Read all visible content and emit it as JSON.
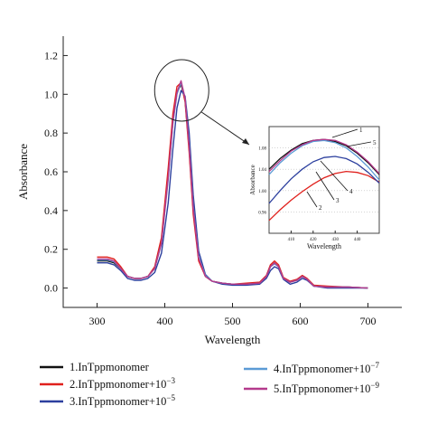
{
  "chart_data": [
    {
      "type": "line",
      "title": "",
      "xlabel": "Wavelength",
      "ylabel": "Absorbance",
      "xlim": [
        250,
        750
      ],
      "ylim": [
        -0.1,
        1.3
      ],
      "xticks": [
        "300",
        "400",
        "500",
        "600",
        "700"
      ],
      "yticks": [
        "0.0",
        "0.2",
        "0.4",
        "0.6",
        "0.8",
        "1.0",
        "1.2"
      ],
      "legend_placement": "bottom",
      "series": [
        {
          "name": "1.InTppmonomer",
          "color": "#111111",
          "x": [
            300,
            315,
            325,
            335,
            345,
            355,
            365,
            375,
            385,
            395,
            405,
            412,
            418,
            424,
            430,
            436,
            442,
            450,
            460,
            470,
            485,
            500,
            520,
            540,
            550,
            556,
            562,
            568,
            575,
            585,
            595,
            603,
            610,
            620,
            640,
            670,
            700
          ],
          "y": [
            0.14,
            0.14,
            0.13,
            0.1,
            0.06,
            0.05,
            0.05,
            0.06,
            0.1,
            0.24,
            0.58,
            0.86,
            1.01,
            1.05,
            0.97,
            0.72,
            0.4,
            0.15,
            0.06,
            0.035,
            0.025,
            0.02,
            0.02,
            0.025,
            0.06,
            0.11,
            0.13,
            0.11,
            0.05,
            0.03,
            0.04,
            0.06,
            0.045,
            0.01,
            0.005,
            0.005,
            0.0
          ]
        },
        {
          "name": "2.InTppmonomer+10",
          "exponent": "−3",
          "color": "#e0201c",
          "x": [
            300,
            315,
            325,
            335,
            345,
            355,
            365,
            375,
            385,
            395,
            405,
            412,
            418,
            424,
            430,
            436,
            442,
            450,
            460,
            470,
            485,
            500,
            520,
            540,
            550,
            556,
            562,
            568,
            575,
            585,
            595,
            603,
            610,
            620,
            640,
            670,
            700
          ],
          "y": [
            0.16,
            0.16,
            0.15,
            0.11,
            0.06,
            0.05,
            0.05,
            0.06,
            0.11,
            0.26,
            0.62,
            0.9,
            1.04,
            1.06,
            0.96,
            0.7,
            0.38,
            0.14,
            0.06,
            0.035,
            0.025,
            0.02,
            0.025,
            0.03,
            0.065,
            0.12,
            0.14,
            0.12,
            0.055,
            0.035,
            0.045,
            0.065,
            0.05,
            0.015,
            0.01,
            0.005,
            0.0
          ]
        },
        {
          "name": "3.InTppmonomer+10",
          "exponent": "−5",
          "color": "#2c3f9e",
          "x": [
            300,
            315,
            325,
            335,
            345,
            355,
            365,
            375,
            385,
            395,
            405,
            412,
            418,
            424,
            430,
            436,
            442,
            450,
            460,
            470,
            485,
            500,
            520,
            540,
            550,
            556,
            562,
            568,
            575,
            585,
            595,
            603,
            610,
            620,
            640,
            670,
            700
          ],
          "y": [
            0.13,
            0.13,
            0.12,
            0.09,
            0.05,
            0.04,
            0.04,
            0.05,
            0.08,
            0.18,
            0.44,
            0.72,
            0.93,
            1.02,
            0.99,
            0.8,
            0.48,
            0.19,
            0.07,
            0.035,
            0.02,
            0.015,
            0.015,
            0.02,
            0.05,
            0.09,
            0.11,
            0.1,
            0.045,
            0.02,
            0.03,
            0.05,
            0.04,
            0.01,
            0.0,
            0.0,
            0.0
          ]
        },
        {
          "name": "4.InTppmonomer+10",
          "exponent": "−7",
          "color": "#5b9bd5",
          "x": [
            300,
            315,
            325,
            335,
            345,
            355,
            365,
            375,
            385,
            395,
            405,
            412,
            418,
            424,
            430,
            436,
            442,
            450,
            460,
            470,
            485,
            500,
            520,
            540,
            550,
            556,
            562,
            568,
            575,
            585,
            595,
            603,
            610,
            620,
            640,
            670,
            700
          ],
          "y": [
            0.145,
            0.145,
            0.135,
            0.1,
            0.06,
            0.05,
            0.05,
            0.06,
            0.1,
            0.23,
            0.56,
            0.85,
            1.0,
            1.06,
            0.98,
            0.74,
            0.42,
            0.16,
            0.065,
            0.035,
            0.025,
            0.02,
            0.02,
            0.025,
            0.06,
            0.11,
            0.125,
            0.11,
            0.05,
            0.03,
            0.04,
            0.06,
            0.045,
            0.01,
            0.005,
            0.005,
            0.0
          ]
        },
        {
          "name": "5.InTppmonomer+10",
          "exponent": "−9",
          "color": "#b43a8c",
          "x": [
            300,
            315,
            325,
            335,
            345,
            355,
            365,
            375,
            385,
            395,
            405,
            412,
            418,
            424,
            430,
            436,
            442,
            450,
            460,
            470,
            485,
            500,
            520,
            540,
            550,
            556,
            562,
            568,
            575,
            585,
            595,
            603,
            610,
            620,
            640,
            670,
            700
          ],
          "y": [
            0.15,
            0.15,
            0.14,
            0.1,
            0.06,
            0.05,
            0.05,
            0.06,
            0.1,
            0.23,
            0.57,
            0.86,
            1.01,
            1.07,
            0.98,
            0.73,
            0.41,
            0.155,
            0.06,
            0.035,
            0.025,
            0.02,
            0.02,
            0.025,
            0.06,
            0.11,
            0.13,
            0.11,
            0.05,
            0.03,
            0.04,
            0.06,
            0.045,
            0.01,
            0.005,
            0.005,
            0.0
          ]
        }
      ]
    },
    {
      "type": "line",
      "title": "",
      "xlabel": "Wavelength",
      "ylabel": "Absorbance",
      "xlim": [
        0,
        100
      ],
      "ylim": [
        0,
        100
      ],
      "xticks": [
        "410",
        "420",
        "430",
        "440"
      ],
      "yticks": [
        "0.96",
        "1.00",
        "1.04",
        "1.08"
      ],
      "annotations": [
        "1",
        "2",
        "3",
        "4",
        "5"
      ],
      "series": [
        {
          "name": "1",
          "color": "#111111",
          "x": [
            0,
            10,
            20,
            30,
            40,
            50,
            60,
            70,
            80,
            90,
            100
          ],
          "y": [
            60,
            70,
            78,
            84,
            87,
            88,
            86,
            82,
            75,
            66,
            55
          ]
        },
        {
          "name": "2",
          "color": "#e0201c",
          "x": [
            0,
            10,
            20,
            30,
            40,
            50,
            60,
            70,
            80,
            90,
            100
          ],
          "y": [
            12,
            22,
            31,
            39,
            46,
            52,
            56,
            58,
            57,
            54,
            48
          ]
        },
        {
          "name": "3",
          "color": "#2c3f9e",
          "x": [
            0,
            10,
            20,
            30,
            40,
            50,
            60,
            70,
            80,
            90,
            100
          ],
          "y": [
            28,
            40,
            51,
            60,
            67,
            71,
            72,
            70,
            65,
            57,
            47
          ]
        },
        {
          "name": "4",
          "color": "#5b9bd5",
          "x": [
            0,
            10,
            20,
            30,
            40,
            50,
            60,
            70,
            80,
            90,
            100
          ],
          "y": [
            55,
            66,
            75,
            82,
            86,
            87,
            85,
            80,
            72,
            62,
            50
          ]
        },
        {
          "name": "5",
          "color": "#b43a8c",
          "x": [
            0,
            10,
            20,
            30,
            40,
            50,
            60,
            70,
            80,
            90,
            100
          ],
          "y": [
            58,
            68,
            77,
            83,
            87,
            88,
            87,
            83,
            76,
            67,
            56
          ]
        }
      ]
    }
  ]
}
